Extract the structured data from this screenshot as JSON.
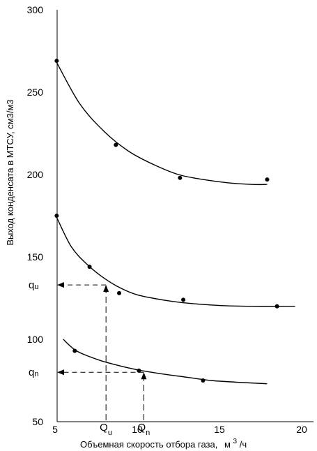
{
  "chart_data": {
    "type": "scatter",
    "xlabel": "Объемная скорость отбора газа,",
    "xlabel_unit_base": "м",
    "xlabel_unit_exp": "3",
    "xlabel_unit_tail": "/ч",
    "ylabel": "Выход конденсата в МТСУ, см3/м3",
    "xlim": [
      5,
      20
    ],
    "ylim": [
      50,
      300
    ],
    "x_ticks": [
      "5",
      "10",
      "15",
      "20"
    ],
    "y_ticks": [
      "50",
      "100",
      "150",
      "200",
      "250",
      "300"
    ],
    "grid": false,
    "series": [
      {
        "points": [
          [
            5.1,
            269
          ],
          [
            8.7,
            218
          ],
          [
            12.6,
            198
          ],
          [
            17.9,
            197
          ]
        ],
        "curve": [
          [
            5.1,
            268
          ],
          [
            6.5,
            243
          ],
          [
            8,
            226
          ],
          [
            9.5,
            214
          ],
          [
            11,
            206
          ],
          [
            12.5,
            200
          ],
          [
            14,
            197
          ],
          [
            15.5,
            195
          ],
          [
            17,
            194
          ],
          [
            17.9,
            194
          ]
        ]
      },
      {
        "points": [
          [
            5.1,
            175
          ],
          [
            7.1,
            144
          ],
          [
            8.9,
            128
          ],
          [
            12.8,
            124
          ],
          [
            18.5,
            120
          ]
        ],
        "curve": [
          [
            5.1,
            174
          ],
          [
            6,
            156
          ],
          [
            7,
            145
          ],
          [
            8,
            137
          ],
          [
            9,
            131
          ],
          [
            10,
            127
          ],
          [
            11.5,
            124
          ],
          [
            13,
            122
          ],
          [
            15,
            120.5
          ],
          [
            17,
            120
          ],
          [
            19.6,
            120
          ]
        ]
      },
      {
        "points": [
          [
            6.2,
            93
          ],
          [
            10.1,
            81
          ],
          [
            14,
            75
          ]
        ],
        "curve": [
          [
            5.5,
            100
          ],
          [
            6.3,
            93
          ],
          [
            7.5,
            88
          ],
          [
            8.5,
            85
          ],
          [
            10,
            81.5
          ],
          [
            11.5,
            79
          ],
          [
            13,
            77
          ],
          [
            14.5,
            75
          ],
          [
            16,
            74
          ],
          [
            17.9,
            73
          ]
        ]
      }
    ],
    "annotations": [
      {
        "name": "qu",
        "label_base": "q",
        "label_sub": "u",
        "x_label_base": "Q",
        "x_label_sub": "u",
        "x": 8.1,
        "y": 133
      },
      {
        "name": "qn",
        "label_base": "q",
        "label_sub": "n",
        "x_label_base": "Q",
        "x_label_sub": "n",
        "x": 10.4,
        "y": 80
      }
    ]
  }
}
